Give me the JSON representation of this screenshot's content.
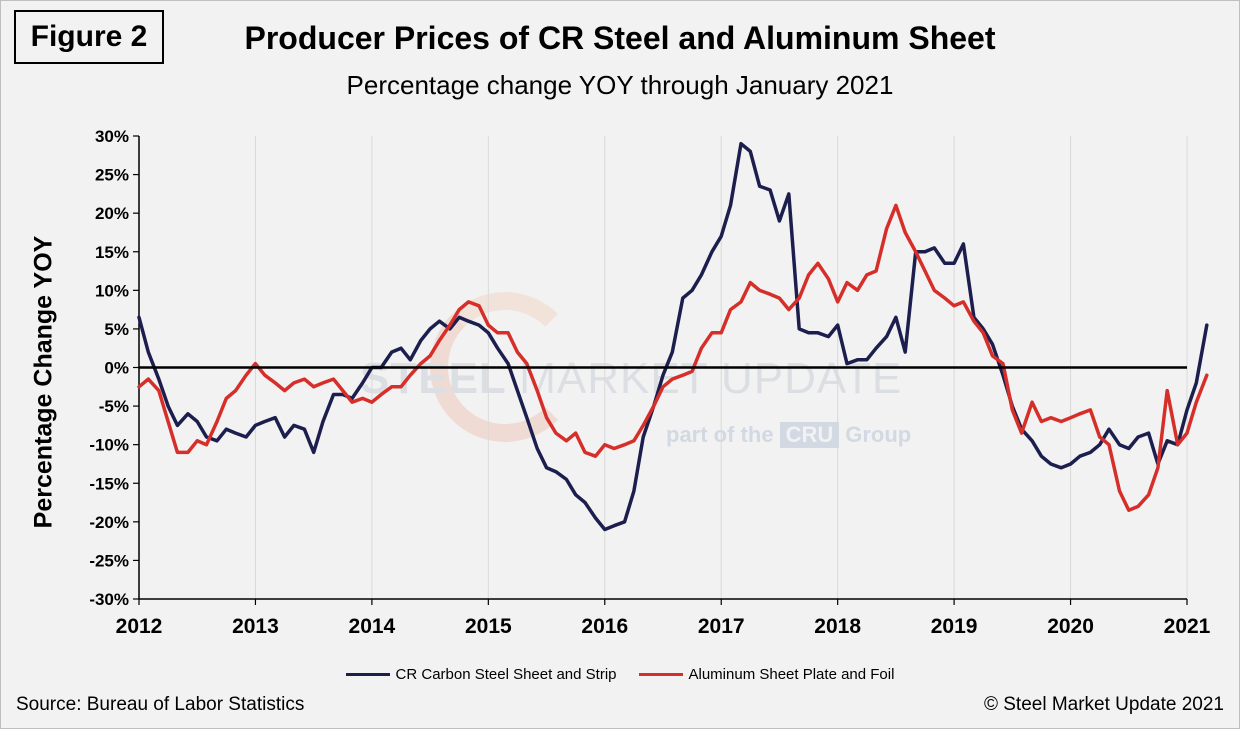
{
  "figure_label": "Figure 2",
  "source": "Source: Bureau of Labor Statistics",
  "copyright": "© Steel Market Update 2021",
  "watermark": {
    "main_bold": "STEEL",
    "main_light": "MARKET UPDATE",
    "sub_prefix": "part of the",
    "sub_brand": "CRU",
    "sub_suffix": "Group"
  },
  "chart_data": {
    "type": "line",
    "title": "Producer Prices of CR Steel and Aluminum Sheet",
    "subtitle": "Percentage change YOY through January 2021",
    "ylabel": "Percentage Change YOY",
    "xlabel": "",
    "ylim": [
      -30,
      30
    ],
    "xlim": [
      2012,
      2021
    ],
    "y_ticks": [
      "30%",
      "25%",
      "20%",
      "15%",
      "10%",
      "5%",
      "0%",
      "-5%",
      "-10%",
      "-15%",
      "-20%",
      "-25%",
      "-30%"
    ],
    "y_tick_values": [
      30,
      25,
      20,
      15,
      10,
      5,
      0,
      -5,
      -10,
      -15,
      -20,
      -25,
      -30
    ],
    "x_ticks": [
      "2012",
      "2013",
      "2014",
      "2015",
      "2016",
      "2017",
      "2018",
      "2019",
      "2020",
      "2021"
    ],
    "grid": "vertical",
    "legend_position": "bottom",
    "colors": {
      "steel": "#1c1f4e",
      "aluminum": "#d62f2a",
      "zero_line": "#000000",
      "grid": "#d9d9d9"
    },
    "series": [
      {
        "name": "CR Carbon Steel Sheet and Strip",
        "color": "#1c1f4e",
        "points": [
          [
            2012.0,
            6.5
          ],
          [
            2012.08,
            2.0
          ],
          [
            2012.17,
            -1.5
          ],
          [
            2012.25,
            -5.0
          ],
          [
            2012.33,
            -7.5
          ],
          [
            2012.42,
            -6.0
          ],
          [
            2012.5,
            -7.0
          ],
          [
            2012.58,
            -9.0
          ],
          [
            2012.67,
            -9.5
          ],
          [
            2012.75,
            -8.0
          ],
          [
            2012.83,
            -8.5
          ],
          [
            2012.92,
            -9.0
          ],
          [
            2013.0,
            -7.5
          ],
          [
            2013.08,
            -7.0
          ],
          [
            2013.17,
            -6.5
          ],
          [
            2013.25,
            -9.0
          ],
          [
            2013.33,
            -7.5
          ],
          [
            2013.42,
            -8.0
          ],
          [
            2013.5,
            -11.0
          ],
          [
            2013.58,
            -7.0
          ],
          [
            2013.67,
            -3.5
          ],
          [
            2013.75,
            -3.5
          ],
          [
            2013.83,
            -4.0
          ],
          [
            2013.92,
            -2.0
          ],
          [
            2014.0,
            0.0
          ],
          [
            2014.08,
            0.0
          ],
          [
            2014.17,
            2.0
          ],
          [
            2014.25,
            2.5
          ],
          [
            2014.33,
            1.0
          ],
          [
            2014.42,
            3.5
          ],
          [
            2014.5,
            5.0
          ],
          [
            2014.58,
            6.0
          ],
          [
            2014.67,
            5.0
          ],
          [
            2014.75,
            6.5
          ],
          [
            2014.83,
            6.0
          ],
          [
            2014.92,
            5.5
          ],
          [
            2015.0,
            4.5
          ],
          [
            2015.08,
            2.5
          ],
          [
            2015.17,
            0.5
          ],
          [
            2015.25,
            -3.0
          ],
          [
            2015.33,
            -6.5
          ],
          [
            2015.42,
            -10.5
          ],
          [
            2015.5,
            -13.0
          ],
          [
            2015.58,
            -13.5
          ],
          [
            2015.67,
            -14.5
          ],
          [
            2015.75,
            -16.5
          ],
          [
            2015.83,
            -17.5
          ],
          [
            2015.92,
            -19.5
          ],
          [
            2016.0,
            -21.0
          ],
          [
            2016.08,
            -20.5
          ],
          [
            2016.17,
            -20.0
          ],
          [
            2016.25,
            -16.0
          ],
          [
            2016.33,
            -9.0
          ],
          [
            2016.42,
            -5.0
          ],
          [
            2016.5,
            -1.0
          ],
          [
            2016.58,
            2.0
          ],
          [
            2016.67,
            9.0
          ],
          [
            2016.75,
            10.0
          ],
          [
            2016.83,
            12.0
          ],
          [
            2016.92,
            15.0
          ],
          [
            2017.0,
            17.0
          ],
          [
            2017.08,
            21.0
          ],
          [
            2017.17,
            29.0
          ],
          [
            2017.25,
            28.0
          ],
          [
            2017.33,
            23.5
          ],
          [
            2017.42,
            23.0
          ],
          [
            2017.5,
            19.0
          ],
          [
            2017.58,
            22.5
          ],
          [
            2017.67,
            5.0
          ],
          [
            2017.75,
            4.5
          ],
          [
            2017.83,
            4.5
          ],
          [
            2017.92,
            4.0
          ],
          [
            2018.0,
            5.5
          ],
          [
            2018.08,
            0.5
          ],
          [
            2018.17,
            1.0
          ],
          [
            2018.25,
            1.0
          ],
          [
            2018.33,
            2.5
          ],
          [
            2018.42,
            4.0
          ],
          [
            2018.5,
            6.5
          ],
          [
            2018.58,
            2.0
          ],
          [
            2018.67,
            15.0
          ],
          [
            2018.75,
            15.0
          ],
          [
            2018.83,
            15.5
          ],
          [
            2018.92,
            13.5
          ],
          [
            2019.0,
            13.5
          ],
          [
            2019.08,
            16.0
          ],
          [
            2019.17,
            6.5
          ],
          [
            2019.25,
            5.0
          ],
          [
            2019.33,
            3.0
          ],
          [
            2019.42,
            -1.0
          ],
          [
            2019.5,
            -5.0
          ],
          [
            2019.58,
            -8.0
          ],
          [
            2019.67,
            -9.5
          ],
          [
            2019.75,
            -11.5
          ],
          [
            2019.83,
            -12.5
          ],
          [
            2019.92,
            -13.0
          ],
          [
            2020.0,
            -12.5
          ],
          [
            2020.08,
            -11.5
          ],
          [
            2020.17,
            -11.0
          ],
          [
            2020.25,
            -10.0
          ],
          [
            2020.33,
            -8.0
          ],
          [
            2020.42,
            -10.0
          ],
          [
            2020.5,
            -10.5
          ],
          [
            2020.58,
            -9.0
          ],
          [
            2020.67,
            -8.5
          ],
          [
            2020.75,
            -12.5
          ],
          [
            2020.83,
            -9.5
          ],
          [
            2020.92,
            -10.0
          ],
          [
            2021.0,
            -5.5
          ],
          [
            2021.08,
            -2.0
          ],
          [
            2021.17,
            5.5
          ]
        ]
      },
      {
        "name": "Aluminum Sheet Plate and Foil",
        "color": "#d62f2a",
        "points": [
          [
            2012.0,
            -2.5
          ],
          [
            2012.08,
            -1.5
          ],
          [
            2012.17,
            -3.0
          ],
          [
            2012.25,
            -7.0
          ],
          [
            2012.33,
            -11.0
          ],
          [
            2012.42,
            -11.0
          ],
          [
            2012.5,
            -9.5
          ],
          [
            2012.58,
            -10.0
          ],
          [
            2012.67,
            -7.0
          ],
          [
            2012.75,
            -4.0
          ],
          [
            2012.83,
            -3.0
          ],
          [
            2012.92,
            -1.0
          ],
          [
            2013.0,
            0.5
          ],
          [
            2013.08,
            -1.0
          ],
          [
            2013.17,
            -2.0
          ],
          [
            2013.25,
            -3.0
          ],
          [
            2013.33,
            -2.0
          ],
          [
            2013.42,
            -1.5
          ],
          [
            2013.5,
            -2.5
          ],
          [
            2013.58,
            -2.0
          ],
          [
            2013.67,
            -1.5
          ],
          [
            2013.75,
            -3.0
          ],
          [
            2013.83,
            -4.5
          ],
          [
            2013.92,
            -4.0
          ],
          [
            2014.0,
            -4.5
          ],
          [
            2014.08,
            -3.5
          ],
          [
            2014.17,
            -2.5
          ],
          [
            2014.25,
            -2.5
          ],
          [
            2014.33,
            -1.0
          ],
          [
            2014.42,
            0.5
          ],
          [
            2014.5,
            1.5
          ],
          [
            2014.58,
            3.5
          ],
          [
            2014.67,
            5.5
          ],
          [
            2014.75,
            7.5
          ],
          [
            2014.83,
            8.5
          ],
          [
            2014.92,
            8.0
          ],
          [
            2015.0,
            5.5
          ],
          [
            2015.08,
            4.5
          ],
          [
            2015.17,
            4.5
          ],
          [
            2015.25,
            2.0
          ],
          [
            2015.33,
            0.5
          ],
          [
            2015.42,
            -3.0
          ],
          [
            2015.5,
            -6.5
          ],
          [
            2015.58,
            -8.5
          ],
          [
            2015.67,
            -9.5
          ],
          [
            2015.75,
            -8.5
          ],
          [
            2015.83,
            -11.0
          ],
          [
            2015.92,
            -11.5
          ],
          [
            2016.0,
            -10.0
          ],
          [
            2016.08,
            -10.5
          ],
          [
            2016.17,
            -10.0
          ],
          [
            2016.25,
            -9.5
          ],
          [
            2016.33,
            -7.5
          ],
          [
            2016.42,
            -5.0
          ],
          [
            2016.5,
            -2.5
          ],
          [
            2016.58,
            -1.5
          ],
          [
            2016.67,
            -1.0
          ],
          [
            2016.75,
            -0.5
          ],
          [
            2016.83,
            2.5
          ],
          [
            2016.92,
            4.5
          ],
          [
            2017.0,
            4.5
          ],
          [
            2017.08,
            7.5
          ],
          [
            2017.17,
            8.5
          ],
          [
            2017.25,
            11.0
          ],
          [
            2017.33,
            10.0
          ],
          [
            2017.42,
            9.5
          ],
          [
            2017.5,
            9.0
          ],
          [
            2017.58,
            7.5
          ],
          [
            2017.67,
            9.0
          ],
          [
            2017.75,
            12.0
          ],
          [
            2017.83,
            13.5
          ],
          [
            2017.92,
            11.5
          ],
          [
            2018.0,
            8.5
          ],
          [
            2018.08,
            11.0
          ],
          [
            2018.17,
            10.0
          ],
          [
            2018.25,
            12.0
          ],
          [
            2018.33,
            12.5
          ],
          [
            2018.42,
            18.0
          ],
          [
            2018.5,
            21.0
          ],
          [
            2018.58,
            17.5
          ],
          [
            2018.67,
            15.0
          ],
          [
            2018.75,
            12.5
          ],
          [
            2018.83,
            10.0
          ],
          [
            2018.92,
            9.0
          ],
          [
            2019.0,
            8.0
          ],
          [
            2019.08,
            8.5
          ],
          [
            2019.17,
            6.0
          ],
          [
            2019.25,
            4.5
          ],
          [
            2019.33,
            1.5
          ],
          [
            2019.42,
            0.5
          ],
          [
            2019.5,
            -5.5
          ],
          [
            2019.58,
            -8.5
          ],
          [
            2019.67,
            -4.5
          ],
          [
            2019.75,
            -7.0
          ],
          [
            2019.83,
            -6.5
          ],
          [
            2019.92,
            -7.0
          ],
          [
            2020.0,
            -6.5
          ],
          [
            2020.08,
            -6.0
          ],
          [
            2020.17,
            -5.5
          ],
          [
            2020.25,
            -9.0
          ],
          [
            2020.33,
            -10.0
          ],
          [
            2020.42,
            -16.0
          ],
          [
            2020.5,
            -18.5
          ],
          [
            2020.58,
            -18.0
          ],
          [
            2020.67,
            -16.5
          ],
          [
            2020.75,
            -13.0
          ],
          [
            2020.83,
            -3.0
          ],
          [
            2020.92,
            -10.0
          ],
          [
            2021.0,
            -8.5
          ],
          [
            2021.08,
            -4.5
          ],
          [
            2021.17,
            -1.0
          ]
        ]
      }
    ]
  }
}
